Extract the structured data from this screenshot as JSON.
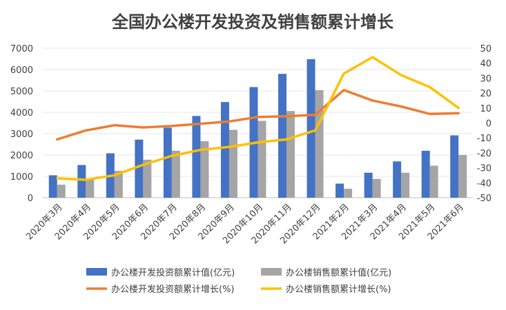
{
  "chart_data": {
    "type": "bar",
    "title": "全国办公楼开发投资及销售额累计增长",
    "categories": [
      "2020年3月",
      "2020年4月",
      "2020年5月",
      "2020年6月",
      "2020年7月",
      "2020年8月",
      "2020年9月",
      "2020年10月",
      "2020年11月",
      "2020年12月",
      "2021年2月",
      "2021年3月",
      "2021年4月",
      "2021年5月",
      "2021年6月"
    ],
    "left_axis": {
      "ylim": [
        0,
        7000
      ],
      "ticks": [
        "0",
        "1000",
        "2000",
        "3000",
        "4000",
        "5000",
        "6000",
        "7000"
      ]
    },
    "right_axis": {
      "ylim": [
        -50,
        50
      ],
      "ticks": [
        "-50",
        "-40",
        "-30",
        "-20",
        "-10",
        "0",
        "10",
        "20",
        "30",
        "40",
        "50"
      ]
    },
    "series": [
      {
        "name": "办公楼开发投资额累计值(亿元)",
        "kind": "bar",
        "axis": "left",
        "color": "#4472C4",
        "values": [
          1050,
          1530,
          2080,
          2720,
          3280,
          3830,
          4480,
          5180,
          5800,
          6490,
          660,
          1170,
          1700,
          2200,
          2920
        ]
      },
      {
        "name": "办公楼销售额累计值(亿元)",
        "kind": "bar",
        "axis": "left",
        "color": "#A5A5A5",
        "values": [
          610,
          880,
          1260,
          1780,
          2200,
          2650,
          3180,
          3600,
          4060,
          5040,
          420,
          880,
          1170,
          1500,
          2000
        ]
      },
      {
        "name": "办公楼开发投资额累计增长(%)",
        "kind": "line",
        "axis": "right",
        "color": "#ED7D31",
        "values": [
          -11,
          -5,
          -1.5,
          -3,
          -2,
          -0.5,
          1,
          4,
          4.5,
          5.5,
          22,
          15,
          11,
          6,
          6.5
        ]
      },
      {
        "name": "办公楼销售额累计增长(%)",
        "kind": "line",
        "axis": "right",
        "color": "#FFC000",
        "values": [
          -37,
          -38,
          -35,
          -28,
          -22,
          -18,
          -16,
          -13,
          -11,
          -5,
          33,
          44,
          32,
          24,
          10
        ]
      }
    ],
    "grid": true,
    "legend": "bottom"
  }
}
